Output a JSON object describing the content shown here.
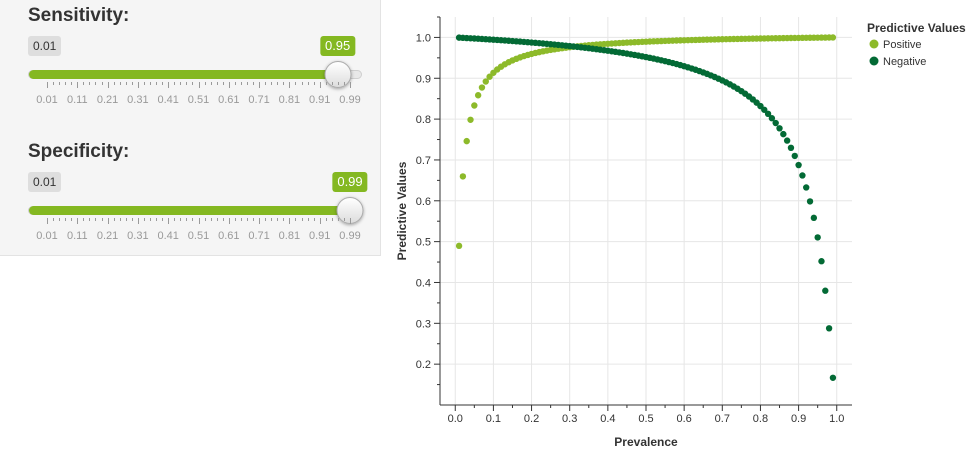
{
  "sliders": [
    {
      "label": "Sensitivity:",
      "min_label": "0.01",
      "min": 0.01,
      "max": 0.99,
      "value": 0.95,
      "value_label": "0.95",
      "ticks": [
        "0.01",
        "0.11",
        "0.21",
        "0.31",
        "0.41",
        "0.51",
        "0.61",
        "0.71",
        "0.81",
        "0.91",
        "0.99"
      ]
    },
    {
      "label": "Specificity:",
      "min_label": "0.01",
      "min": 0.01,
      "max": 0.99,
      "value": 0.99,
      "value_label": "0.99",
      "ticks": [
        "0.01",
        "0.11",
        "0.21",
        "0.31",
        "0.41",
        "0.51",
        "0.61",
        "0.71",
        "0.81",
        "0.91",
        "0.99"
      ]
    }
  ],
  "colors": {
    "accent": "#84b821",
    "positive": "#8dba2a",
    "negative": "#036a35"
  },
  "chart_data": {
    "type": "scatter",
    "xlabel": "Prevalence",
    "ylabel": "Predictive Values",
    "xlim": [
      -0.04,
      1.04
    ],
    "ylim": [
      0.1,
      1.05
    ],
    "x_ticks": [
      "0.0",
      "0.1",
      "0.2",
      "0.3",
      "0.4",
      "0.5",
      "0.6",
      "0.7",
      "0.8",
      "0.9",
      "1.0"
    ],
    "y_ticks": [
      "0.2",
      "0.3",
      "0.4",
      "0.5",
      "0.6",
      "0.7",
      "0.8",
      "0.9",
      "1.0"
    ],
    "grid": true,
    "legend": {
      "title": "Predictive Values",
      "position": "top-right"
    },
    "prevalence": {
      "start": 0.01,
      "end": 0.99,
      "step": 0.01
    },
    "sensitivity": 0.95,
    "specificity": 0.99,
    "series": [
      {
        "name": "Positive",
        "color": "#8dba2a"
      },
      {
        "name": "Negative",
        "color": "#036a35"
      }
    ]
  }
}
